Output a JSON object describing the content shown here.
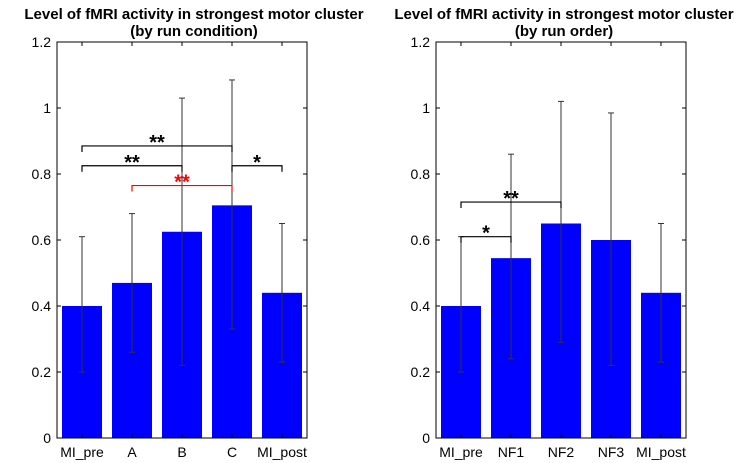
{
  "colors": {
    "bar": "#0000ff",
    "error_bar": "#333333",
    "axis": "#000000",
    "bracket_default": "#000000",
    "bracket_highlight": "#ff0000"
  },
  "chart_data": [
    {
      "type": "bar",
      "title_line1": "Level of fMRI activity in strongest motor cluster",
      "title_line2": "(by run condition)",
      "categories": [
        "MI_pre",
        "A",
        "B",
        "C",
        "MI_post"
      ],
      "values": [
        0.4,
        0.47,
        0.625,
        0.705,
        0.44
      ],
      "error_low": [
        0.2,
        0.26,
        0.22,
        0.33,
        0.23
      ],
      "error_high": [
        0.61,
        0.68,
        1.03,
        1.085,
        0.65
      ],
      "ylim": [
        0,
        1.2
      ],
      "yticks": [
        0,
        0.2,
        0.4,
        0.6,
        0.8,
        1,
        1.2
      ],
      "ytick_labels": [
        "0",
        "0.2",
        "0.4",
        "0.6",
        "0.8",
        "1",
        "1.2"
      ],
      "annotations": [
        {
          "from": "MI_pre",
          "to": "C",
          "y": 0.885,
          "label": "**",
          "color": "#000000"
        },
        {
          "from": "MI_pre",
          "to": "B",
          "y": 0.825,
          "label": "**",
          "color": "#000000"
        },
        {
          "from": "C",
          "to": "MI_post",
          "y": 0.825,
          "label": "*",
          "color": "#000000"
        },
        {
          "from": "A",
          "to": "C",
          "y": 0.765,
          "label": "**",
          "color": "#ff0000"
        }
      ]
    },
    {
      "type": "bar",
      "title_line1": "Level of fMRI activity in strongest motor cluster",
      "title_line2": "(by run order)",
      "categories": [
        "MI_pre",
        "NF1",
        "NF2",
        "NF3",
        "MI_post"
      ],
      "values": [
        0.4,
        0.545,
        0.65,
        0.6,
        0.44
      ],
      "error_low": [
        0.2,
        0.24,
        0.29,
        0.22,
        0.23
      ],
      "error_high": [
        0.61,
        0.86,
        1.02,
        0.985,
        0.65
      ],
      "ylim": [
        0,
        1.2
      ],
      "yticks": [
        0,
        0.2,
        0.4,
        0.6,
        0.8,
        1,
        1.2
      ],
      "ytick_labels": [
        "0",
        "0.2",
        "0.4",
        "0.6",
        "0.8",
        "1",
        "1.2"
      ],
      "annotations": [
        {
          "from": "MI_pre",
          "to": "NF2",
          "y": 0.715,
          "label": "**",
          "color": "#000000"
        },
        {
          "from": "MI_pre",
          "to": "NF1",
          "y": 0.61,
          "label": "*",
          "color": "#000000"
        }
      ]
    }
  ]
}
